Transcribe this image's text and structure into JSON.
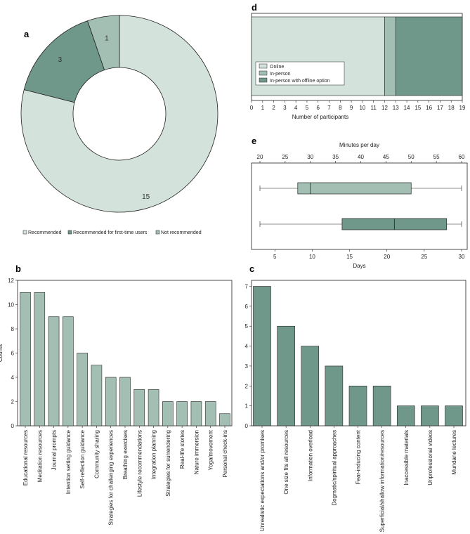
{
  "colors": {
    "light": "#d3e3dc",
    "mid": "#a3bfb3",
    "dark": "#6f978a",
    "stroke": "#222222"
  },
  "chart_data": [
    {
      "panel": "a",
      "type": "pie",
      "labels": [
        "Recommended",
        "Recommended for first-time users",
        "Not recommended"
      ],
      "values": [
        15,
        3,
        1
      ],
      "legend_position": "bottom"
    },
    {
      "panel": "b",
      "type": "bar",
      "ylabel": "Counts",
      "ylim": [
        0,
        12
      ],
      "yticks": [
        0,
        2,
        4,
        6,
        8,
        10,
        12
      ],
      "categories": [
        "Educational resources",
        "Meditation resources",
        "Journal prompts",
        "Intention setting guidance",
        "Self-reflection guidance",
        "Community sharing",
        "Strategies for challenging experiences",
        "Breathing exercises",
        "Lifestyle recommendations",
        "Integration planning",
        "Strategies for surrendering",
        "Real-life stories",
        "Nature immersion",
        "Yoga/movement",
        "Personal check-ins"
      ],
      "values": [
        11,
        11,
        9,
        9,
        6,
        5,
        4,
        4,
        3,
        3,
        2,
        2,
        2,
        2,
        1
      ]
    },
    {
      "panel": "c",
      "type": "bar",
      "ylim": [
        0,
        7.3
      ],
      "yticks": [
        0,
        1,
        2,
        3,
        4,
        5,
        6,
        7
      ],
      "categories": [
        "Unrealistic expectations and/or promises",
        "One size fits all resources",
        "Information overload",
        "Dogmatic/spiritual approaches",
        "Fear-inducing content",
        "Superficial/shallow information/resources",
        "Inaccessible materials",
        "Unprofessional videos",
        "Mundane lectures"
      ],
      "values": [
        7,
        5,
        4,
        3,
        2,
        2,
        1,
        1,
        1
      ]
    },
    {
      "panel": "d",
      "type": "bar",
      "orientation": "horizontal-stacked",
      "xlabel": "Number of participants",
      "xlim": [
        0,
        19
      ],
      "xticks": [
        0,
        1,
        2,
        3,
        4,
        5,
        6,
        7,
        8,
        9,
        10,
        11,
        12,
        13,
        14,
        15,
        16,
        17,
        18,
        19
      ],
      "series": [
        {
          "name": "Online",
          "value": 12
        },
        {
          "name": "In-person",
          "value": 1
        },
        {
          "name": "In-person with offline option",
          "value": 6
        }
      ],
      "legend_position": "bottom-left"
    },
    {
      "panel": "e",
      "type": "box",
      "top_axis": {
        "label": "Minutes per day",
        "lim": [
          20,
          60
        ],
        "ticks": [
          20,
          25,
          30,
          35,
          40,
          45,
          50,
          55,
          60
        ]
      },
      "bottom_axis": {
        "label": "Days",
        "lim": [
          2.4,
          30.4
        ],
        "ticks": [
          5,
          10,
          15,
          20,
          25,
          30
        ]
      },
      "boxes": [
        {
          "name": "Minutes per day",
          "axis": "top",
          "min": 20,
          "q1": 27.5,
          "median": 30,
          "q3": 50,
          "max": 60
        },
        {
          "name": "Days",
          "axis": "bottom",
          "min": 3,
          "q1": 14,
          "median": 21,
          "q3": 28,
          "max": 30
        }
      ]
    }
  ]
}
